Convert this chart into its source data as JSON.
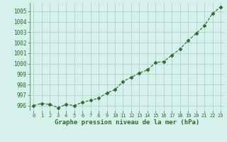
{
  "x": [
    0,
    1,
    2,
    3,
    4,
    5,
    6,
    7,
    8,
    9,
    10,
    11,
    12,
    13,
    14,
    15,
    16,
    17,
    18,
    19,
    20,
    21,
    22,
    23
  ],
  "y": [
    996.0,
    996.2,
    996.1,
    995.8,
    996.1,
    996.0,
    996.3,
    996.5,
    996.7,
    997.2,
    997.5,
    998.3,
    998.7,
    999.1,
    999.4,
    1000.1,
    1000.2,
    1000.8,
    1001.4,
    1002.2,
    1002.9,
    1003.6,
    1004.8,
    1005.4
  ],
  "ylabel_ticks": [
    996,
    997,
    998,
    999,
    1000,
    1001,
    1002,
    1003,
    1004,
    1005
  ],
  "xlabel": "Graphe pression niveau de la mer (hPa)",
  "line_color": "#2d6e2d",
  "marker_color": "#2d6e2d",
  "bg_color": "#d6f0eb",
  "grid_color": "#a8cfc8",
  "ylim": [
    995.5,
    1005.8
  ],
  "xlim": [
    -0.5,
    23.5
  ],
  "xtick_fontsize": 5.0,
  "ytick_fontsize": 5.5,
  "xlabel_fontsize": 6.5
}
